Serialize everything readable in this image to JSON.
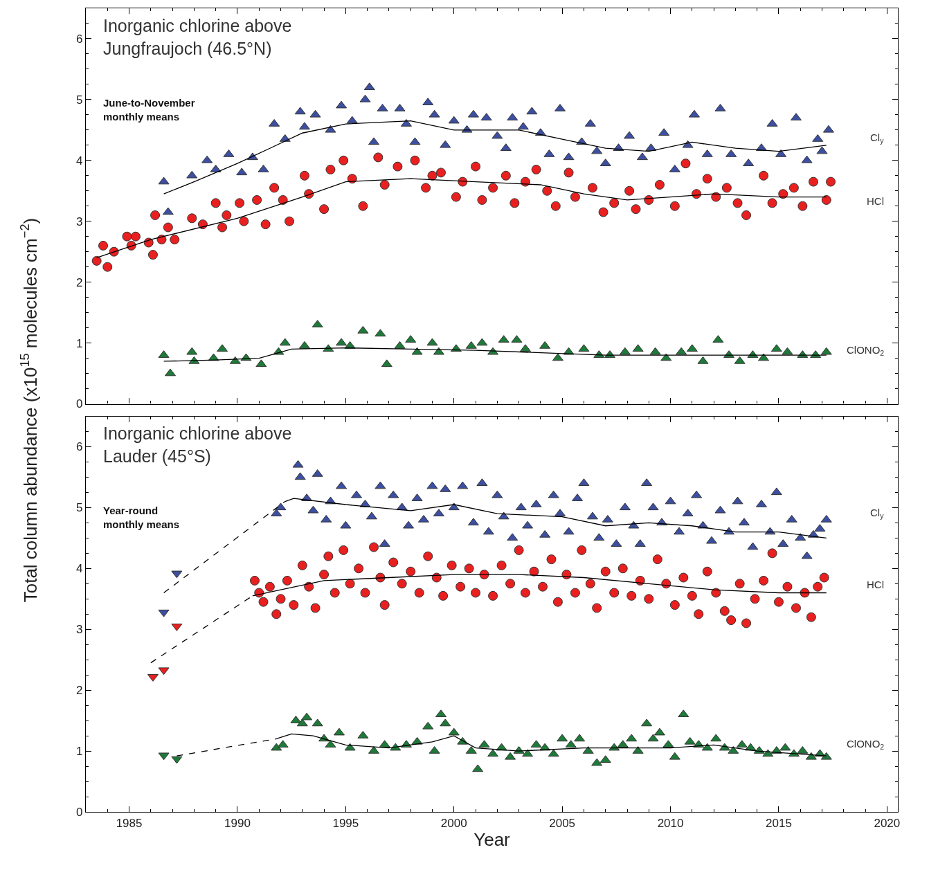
{
  "chart_data": [
    {
      "type": "scatter",
      "title": "Inorganic chlorine above\nJungfraujoch (46.5°N)",
      "subtitle": "June-to-November\nmonthly means",
      "ylabel": "Total column abundance (x10$^{15}$ molecules cm$^{−2}$)",
      "xlim": [
        1983,
        2020.5
      ],
      "xticks": [
        1985,
        1990,
        1995,
        2000,
        2005,
        2010,
        2015,
        2020
      ],
      "ylim": [
        0,
        6.5
      ],
      "yticks": [
        0,
        1,
        2,
        3,
        4,
        5,
        6
      ],
      "tick_labels": "y",
      "series": [
        {
          "name": "Cl$_{y}$",
          "type": "scatter",
          "marker": "triangle",
          "color": "#3d4fa0",
          "x": [
            1986.6,
            1986.8,
            1987.9,
            1988.6,
            1989.0,
            1989.6,
            1990.2,
            1990.7,
            1991.2,
            1991.7,
            1992.2,
            1992.9,
            1993.1,
            1993.6,
            1994.3,
            1994.8,
            1995.3,
            1995.9,
            1996.1,
            1996.3,
            1996.7,
            1997.5,
            1997.8,
            1998.2,
            1998.8,
            1999.1,
            1999.6,
            2000.0,
            2000.6,
            2000.9,
            2001.5,
            2002.0,
            2002.4,
            2002.7,
            2003.2,
            2003.6,
            2004.0,
            2004.4,
            2004.9,
            2005.3,
            2005.9,
            2006.3,
            2006.6,
            2007.0,
            2007.6,
            2008.1,
            2008.7,
            2009.1,
            2009.7,
            2010.2,
            2010.8,
            2011.1,
            2011.7,
            2012.3,
            2012.8,
            2013.6,
            2014.2,
            2014.7,
            2015.1,
            2015.8,
            2016.3,
            2016.8,
            2017.0,
            2017.3
          ],
          "values": [
            3.65,
            3.15,
            3.75,
            4.0,
            3.85,
            4.1,
            3.8,
            4.05,
            3.85,
            4.6,
            4.35,
            4.8,
            4.55,
            4.75,
            4.5,
            4.9,
            4.65,
            5.0,
            5.2,
            4.3,
            4.85,
            4.85,
            4.6,
            4.3,
            4.95,
            4.75,
            4.25,
            4.65,
            4.5,
            4.75,
            4.7,
            4.4,
            4.2,
            4.7,
            4.55,
            4.8,
            4.45,
            4.1,
            4.85,
            4.05,
            4.3,
            4.6,
            4.15,
            3.95,
            4.2,
            4.4,
            4.05,
            4.2,
            4.45,
            3.85,
            4.25,
            4.75,
            4.1,
            4.85,
            4.1,
            3.95,
            4.2,
            4.6,
            4.1,
            4.7,
            4.0,
            4.35,
            4.15,
            4.5
          ]
        },
        {
          "name": "HCl",
          "type": "scatter",
          "marker": "circle",
          "color": "#e8201f",
          "x": [
            1983.5,
            1983.8,
            1984.0,
            1984.3,
            1984.9,
            1985.1,
            1985.3,
            1985.9,
            1986.1,
            1986.2,
            1986.5,
            1986.8,
            1987.1,
            1987.9,
            1988.4,
            1989.0,
            1989.3,
            1989.5,
            1990.1,
            1990.3,
            1990.9,
            1991.3,
            1991.7,
            1992.1,
            1992.4,
            1993.1,
            1993.3,
            1994.0,
            1994.3,
            1994.9,
            1995.3,
            1995.8,
            1996.5,
            1996.8,
            1997.4,
            1998.2,
            1998.7,
            1999.0,
            1999.4,
            2000.1,
            2000.4,
            2001.0,
            2001.3,
            2001.8,
            2002.4,
            2002.8,
            2003.3,
            2003.8,
            2004.3,
            2004.7,
            2005.3,
            2005.6,
            2006.4,
            2006.9,
            2007.4,
            2008.1,
            2008.4,
            2009.0,
            2009.5,
            2010.2,
            2010.7,
            2011.2,
            2011.7,
            2012.1,
            2012.6,
            2013.1,
            2013.5,
            2014.3,
            2014.7,
            2015.2,
            2015.7,
            2016.1,
            2016.6,
            2017.2,
            2017.4
          ],
          "values": [
            2.35,
            2.6,
            2.25,
            2.5,
            2.75,
            2.6,
            2.75,
            2.65,
            2.45,
            3.1,
            2.7,
            2.9,
            2.7,
            3.05,
            2.95,
            3.3,
            2.9,
            3.1,
            3.3,
            3.0,
            3.35,
            2.95,
            3.55,
            3.35,
            3.0,
            3.75,
            3.45,
            3.2,
            3.85,
            4.0,
            3.7,
            3.25,
            4.05,
            3.6,
            3.9,
            4.0,
            3.55,
            3.75,
            3.8,
            3.4,
            3.65,
            3.9,
            3.35,
            3.55,
            3.75,
            3.3,
            3.65,
            3.85,
            3.5,
            3.25,
            3.8,
            3.4,
            3.55,
            3.15,
            3.3,
            3.5,
            3.2,
            3.35,
            3.6,
            3.25,
            3.95,
            3.45,
            3.7,
            3.4,
            3.55,
            3.3,
            3.1,
            3.75,
            3.3,
            3.45,
            3.55,
            3.25,
            3.65,
            3.35,
            3.65
          ]
        },
        {
          "name": "ClONO$_{2}$",
          "type": "scatter",
          "marker": "triangle",
          "color": "#1f7a3a",
          "x": [
            1986.6,
            1986.9,
            1987.9,
            1988.0,
            1988.9,
            1989.3,
            1989.9,
            1990.4,
            1991.1,
            1991.9,
            1992.2,
            1993.1,
            1993.7,
            1994.2,
            1994.8,
            1995.2,
            1995.8,
            1996.6,
            1996.9,
            1997.5,
            1998.0,
            1998.3,
            1999.0,
            1999.3,
            2000.1,
            2000.8,
            2001.3,
            2001.8,
            2002.3,
            2002.9,
            2003.3,
            2004.2,
            2004.8,
            2005.3,
            2006.0,
            2006.7,
            2007.2,
            2007.9,
            2008.5,
            2009.3,
            2009.8,
            2010.5,
            2011.0,
            2011.5,
            2012.2,
            2012.7,
            2013.2,
            2013.8,
            2014.3,
            2014.9,
            2015.4,
            2016.1,
            2016.7,
            2017.2
          ],
          "values": [
            0.8,
            0.5,
            0.85,
            0.7,
            0.75,
            0.9,
            0.7,
            0.75,
            0.65,
            0.85,
            1.0,
            0.95,
            1.3,
            0.9,
            1.0,
            0.95,
            1.2,
            1.15,
            0.65,
            0.95,
            1.05,
            0.85,
            1.0,
            0.85,
            0.9,
            0.95,
            1.0,
            0.85,
            1.05,
            1.05,
            0.9,
            0.95,
            0.75,
            0.85,
            0.9,
            0.8,
            0.8,
            0.85,
            0.9,
            0.85,
            0.75,
            0.85,
            0.9,
            0.7,
            1.05,
            0.8,
            0.7,
            0.8,
            0.75,
            0.9,
            0.85,
            0.8,
            0.8,
            0.85
          ]
        },
        {
          "type": "line",
          "marker": "none",
          "line_style": "solid",
          "color": "#000000",
          "x": [
            1986.6,
            1988,
            1990,
            1991.5,
            1993,
            1995,
            1998,
            2000,
            2003,
            2005,
            2007,
            2009,
            2011,
            2013,
            2015,
            2017.2
          ],
          "values": [
            3.45,
            3.65,
            3.95,
            4.2,
            4.45,
            4.6,
            4.65,
            4.5,
            4.5,
            4.35,
            4.2,
            4.15,
            4.3,
            4.2,
            4.15,
            4.25
          ]
        },
        {
          "type": "line",
          "marker": "none",
          "line_style": "solid",
          "color": "#000000",
          "x": [
            1983.5,
            1986,
            1990,
            1993,
            1995,
            1998,
            2001,
            2004,
            2006,
            2008,
            2010,
            2012,
            2015,
            2017.2
          ],
          "values": [
            2.4,
            2.7,
            3.05,
            3.4,
            3.65,
            3.7,
            3.65,
            3.6,
            3.45,
            3.35,
            3.4,
            3.45,
            3.4,
            3.4
          ]
        },
        {
          "type": "line",
          "marker": "none",
          "line_style": "solid",
          "color": "#000000",
          "x": [
            1986.6,
            1989,
            1991,
            1992.5,
            1995,
            1998,
            2001,
            2004,
            2007,
            2010,
            2013,
            2017.2
          ],
          "values": [
            0.7,
            0.72,
            0.75,
            0.9,
            0.92,
            0.9,
            0.88,
            0.84,
            0.8,
            0.8,
            0.8,
            0.8
          ]
        }
      ]
    },
    {
      "type": "scatter",
      "title": "Inorganic chlorine above\nLauder (45°S)",
      "subtitle": "Year-round\nmonthly means",
      "xlabel": "Year",
      "xlim": [
        1983,
        2020.5
      ],
      "xticks": [
        1985,
        1990,
        1995,
        2000,
        2005,
        2010,
        2015,
        2020
      ],
      "ylim": [
        0,
        6.5
      ],
      "yticks": [
        0,
        1,
        2,
        3,
        4,
        5,
        6
      ],
      "series": [
        {
          "name": "Cl$_{y}$",
          "type": "scatter",
          "marker": "triangle",
          "color": "#3d4fa0",
          "x": [
            1991.8,
            1992.0,
            1992.8,
            1992.9,
            1993.2,
            1993.5,
            1993.7,
            1994.1,
            1994.3,
            1994.8,
            1995.0,
            1995.5,
            1995.9,
            1996.2,
            1996.6,
            1996.8,
            1997.2,
            1997.6,
            1997.9,
            1998.3,
            1998.6,
            1999.0,
            1999.3,
            1999.6,
            2000.0,
            2000.4,
            2000.9,
            2001.3,
            2001.6,
            2002.0,
            2002.3,
            2002.7,
            2003.1,
            2003.4,
            2003.8,
            2004.2,
            2004.6,
            2004.9,
            2005.3,
            2005.7,
            2006.0,
            2006.4,
            2006.7,
            2007.1,
            2007.5,
            2007.9,
            2008.3,
            2008.6,
            2008.9,
            2009.2,
            2009.6,
            2010.0,
            2010.4,
            2010.8,
            2011.2,
            2011.5,
            2011.9,
            2012.3,
            2012.7,
            2013.1,
            2013.4,
            2013.8,
            2014.2,
            2014.6,
            2014.9,
            2015.2,
            2015.6,
            2016.0,
            2016.3,
            2016.6,
            2016.9,
            2017.2
          ],
          "values": [
            4.9,
            5.0,
            5.7,
            5.5,
            5.15,
            4.95,
            5.55,
            4.8,
            5.1,
            5.35,
            4.7,
            5.2,
            5.05,
            4.85,
            5.35,
            4.4,
            5.2,
            5.0,
            4.7,
            5.15,
            4.8,
            5.35,
            4.9,
            5.3,
            5.0,
            5.35,
            4.75,
            5.4,
            4.6,
            5.2,
            4.85,
            4.5,
            5.0,
            4.7,
            5.05,
            4.55,
            5.2,
            4.9,
            4.6,
            5.15,
            5.4,
            4.85,
            4.5,
            4.8,
            4.4,
            5.0,
            4.7,
            4.4,
            5.4,
            5.0,
            4.75,
            5.1,
            4.6,
            4.9,
            5.2,
            4.7,
            4.45,
            4.95,
            4.6,
            5.1,
            4.75,
            4.35,
            5.05,
            4.6,
            5.25,
            4.4,
            4.8,
            4.5,
            4.2,
            4.55,
            4.65,
            4.8
          ]
        },
        {
          "name": "HCl",
          "type": "scatter",
          "marker": "circle",
          "color": "#e8201f",
          "x": [
            1990.8,
            1991.0,
            1991.2,
            1991.5,
            1991.8,
            1992.0,
            1992.3,
            1992.6,
            1993.0,
            1993.3,
            1993.6,
            1994.0,
            1994.2,
            1994.5,
            1994.9,
            1995.2,
            1995.6,
            1995.9,
            1996.3,
            1996.6,
            1996.8,
            1997.2,
            1997.6,
            1998.0,
            1998.4,
            1998.8,
            1999.2,
            1999.5,
            1999.9,
            2000.3,
            2000.7,
            2001.0,
            2001.4,
            2001.8,
            2002.2,
            2002.6,
            2003.0,
            2003.3,
            2003.7,
            2004.1,
            2004.5,
            2004.8,
            2005.2,
            2005.6,
            2005.9,
            2006.3,
            2006.6,
            2007.0,
            2007.4,
            2007.8,
            2008.2,
            2008.6,
            2009.0,
            2009.4,
            2009.8,
            2010.2,
            2010.6,
            2011.0,
            2011.3,
            2011.7,
            2012.1,
            2012.5,
            2012.8,
            2013.2,
            2013.5,
            2013.9,
            2014.3,
            2014.7,
            2015.0,
            2015.4,
            2015.8,
            2016.2,
            2016.5,
            2016.8,
            2017.1
          ],
          "values": [
            3.8,
            3.6,
            3.45,
            3.7,
            3.25,
            3.5,
            3.8,
            3.4,
            4.05,
            3.7,
            3.35,
            3.9,
            4.2,
            3.6,
            4.3,
            3.75,
            4.0,
            3.6,
            4.35,
            3.85,
            3.4,
            4.1,
            3.75,
            3.95,
            3.6,
            4.2,
            3.85,
            3.55,
            4.05,
            3.7,
            4.0,
            3.6,
            3.9,
            3.55,
            4.05,
            3.75,
            4.3,
            3.6,
            3.95,
            3.7,
            4.15,
            3.45,
            3.9,
            3.6,
            4.3,
            3.75,
            3.35,
            3.95,
            3.6,
            4.0,
            3.55,
            3.8,
            3.5,
            4.15,
            3.75,
            3.4,
            3.85,
            3.55,
            3.25,
            3.95,
            3.6,
            3.3,
            3.15,
            3.75,
            3.1,
            3.5,
            3.8,
            4.25,
            3.45,
            3.7,
            3.35,
            3.6,
            3.2,
            3.7,
            3.85
          ]
        },
        {
          "name": "ClONO$_{2}$",
          "type": "scatter",
          "marker": "triangle",
          "color": "#1f7a3a",
          "x": [
            1991.8,
            1992.1,
            1992.7,
            1993.0,
            1993.2,
            1993.7,
            1994.0,
            1994.3,
            1994.7,
            1995.2,
            1995.8,
            1996.3,
            1996.8,
            1997.3,
            1997.8,
            1998.3,
            1998.8,
            1999.1,
            1999.4,
            1999.6,
            2000.0,
            2000.4,
            2000.8,
            2001.1,
            2001.4,
            2001.8,
            2002.2,
            2002.6,
            2003.0,
            2003.4,
            2003.8,
            2004.2,
            2004.6,
            2005.0,
            2005.4,
            2005.8,
            2006.2,
            2006.6,
            2007.0,
            2007.4,
            2007.8,
            2008.2,
            2008.5,
            2008.9,
            2009.2,
            2009.5,
            2009.9,
            2010.2,
            2010.6,
            2010.9,
            2011.3,
            2011.7,
            2012.1,
            2012.5,
            2012.9,
            2013.3,
            2013.7,
            2014.1,
            2014.5,
            2014.9,
            2015.3,
            2015.7,
            2016.1,
            2016.5,
            2016.9,
            2017.2
          ],
          "values": [
            1.05,
            1.1,
            1.5,
            1.45,
            1.55,
            1.45,
            1.2,
            1.1,
            1.3,
            1.05,
            1.25,
            1.0,
            1.1,
            1.05,
            1.1,
            1.15,
            1.4,
            1.0,
            1.6,
            1.45,
            1.3,
            1.15,
            1.0,
            0.7,
            1.1,
            0.95,
            1.05,
            0.9,
            1.0,
            0.95,
            1.1,
            1.05,
            0.95,
            1.2,
            1.1,
            1.2,
            1.0,
            0.8,
            0.85,
            1.05,
            1.1,
            1.2,
            1.0,
            1.45,
            1.2,
            1.3,
            1.1,
            0.9,
            1.6,
            1.15,
            1.1,
            1.05,
            1.2,
            1.05,
            1.0,
            1.1,
            1.05,
            1.0,
            0.95,
            1.0,
            1.05,
            0.95,
            1.0,
            0.9,
            0.95,
            0.9
          ]
        },
        {
          "type": "scatter",
          "marker": "triangle-down",
          "color": "#3d4fa0",
          "x": [
            1986.6,
            1987.2
          ],
          "values": [
            3.28,
            3.92
          ]
        },
        {
          "type": "scatter",
          "marker": "triangle-down",
          "color": "#e8201f",
          "x": [
            1986.1,
            1986.6,
            1987.2
          ],
          "values": [
            2.22,
            2.33,
            3.05
          ]
        },
        {
          "type": "scatter",
          "marker": "triangle-down",
          "color": "#1f7a3a",
          "x": [
            1986.6,
            1987.2
          ],
          "values": [
            0.93,
            0.87
          ]
        },
        {
          "type": "line",
          "marker": "none",
          "line_style": "dashed",
          "color": "#000000",
          "x": [
            1986.6,
            1992.2
          ],
          "values": [
            3.6,
            5.1
          ]
        },
        {
          "type": "line",
          "marker": "none",
          "line_style": "dashed",
          "color": "#000000",
          "x": [
            1986.0,
            1990.7
          ],
          "values": [
            2.45,
            3.55
          ]
        },
        {
          "type": "line",
          "marker": "none",
          "line_style": "dashed",
          "color": "#000000",
          "x": [
            1987.2,
            1991.8
          ],
          "values": [
            0.92,
            1.2
          ]
        },
        {
          "type": "line",
          "marker": "none",
          "line_style": "solid",
          "color": "#000000",
          "x": [
            1992.2,
            1992.6,
            1995,
            1998,
            2000,
            2002,
            2005,
            2007,
            2009,
            2011,
            2013,
            2015,
            2017.2
          ],
          "values": [
            5.1,
            5.15,
            5.05,
            4.95,
            5.05,
            4.9,
            4.85,
            4.7,
            4.75,
            4.7,
            4.6,
            4.6,
            4.5
          ]
        },
        {
          "type": "line",
          "marker": "none",
          "line_style": "solid",
          "color": "#000000",
          "x": [
            1990.7,
            1992,
            1994,
            1997,
            2000,
            2003,
            2006,
            2009,
            2012,
            2015,
            2017.2
          ],
          "values": [
            3.55,
            3.65,
            3.8,
            3.85,
            3.9,
            3.9,
            3.85,
            3.75,
            3.65,
            3.6,
            3.6
          ]
        },
        {
          "type": "line",
          "marker": "none",
          "line_style": "solid",
          "color": "#000000",
          "x": [
            1991.8,
            1992.5,
            1993.5,
            1995,
            1997,
            1999,
            2000,
            2001,
            2003,
            2006,
            2008,
            2010,
            2012,
            2014,
            2017.2
          ],
          "values": [
            1.2,
            1.28,
            1.25,
            1.1,
            1.05,
            1.15,
            1.25,
            1.05,
            1.0,
            1.05,
            1.05,
            1.05,
            1.1,
            1.0,
            0.92
          ]
        }
      ]
    }
  ]
}
